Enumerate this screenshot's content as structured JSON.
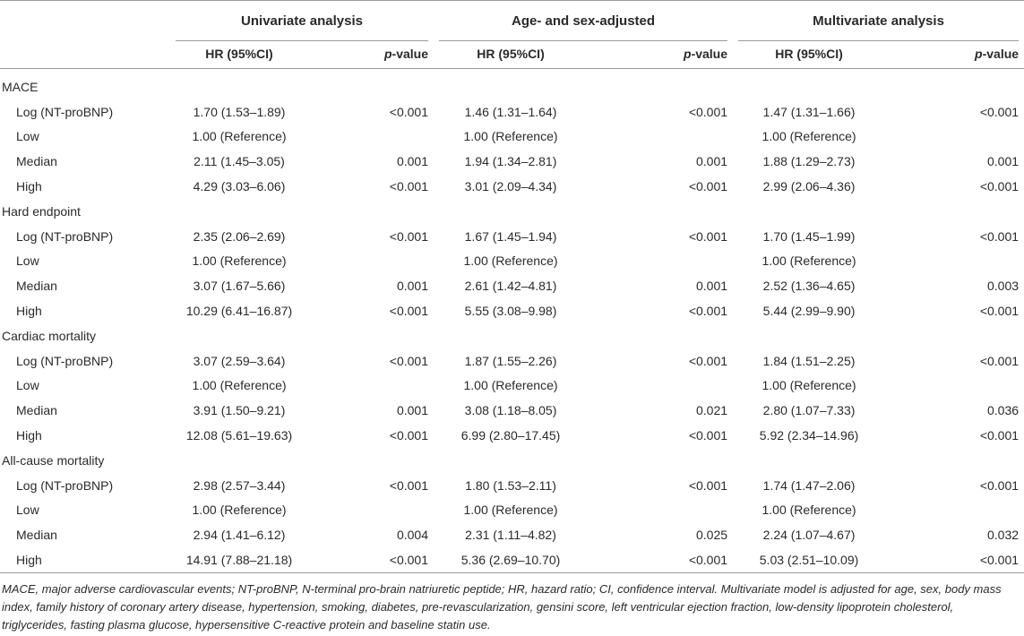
{
  "header": {
    "groups": [
      "Univariate analysis",
      "Age- and sex-adjusted",
      "Multivariate analysis"
    ],
    "hr_label": "HR (95%CI)",
    "p_italic": "p",
    "p_rest": "-value"
  },
  "sections": [
    {
      "title": "MACE",
      "rows": [
        {
          "label": "Log (NT-proBNP)",
          "u_hr": "1.70 (1.53–1.89)",
          "u_p": "<0.001",
          "a_hr": "1.46 (1.31–1.64)",
          "a_p": "<0.001",
          "m_hr": "1.47 (1.31–1.66)",
          "m_p": "<0.001"
        },
        {
          "label": "Low",
          "u_hr": "1.00 (Reference)",
          "u_p": "",
          "a_hr": "1.00 (Reference)",
          "a_p": "",
          "m_hr": "1.00 (Reference)",
          "m_p": ""
        },
        {
          "label": "Median",
          "u_hr": "2.11 (1.45–3.05)",
          "u_p": "0.001",
          "a_hr": "1.94 (1.34–2.81)",
          "a_p": "0.001",
          "m_hr": "1.88 (1.29–2.73)",
          "m_p": "0.001"
        },
        {
          "label": "High",
          "u_hr": "4.29 (3.03–6.06)",
          "u_p": "<0.001",
          "a_hr": "3.01 (2.09–4.34)",
          "a_p": "<0.001",
          "m_hr": "2.99 (2.06–4.36)",
          "m_p": "<0.001"
        }
      ]
    },
    {
      "title": "Hard endpoint",
      "rows": [
        {
          "label": "Log (NT-proBNP)",
          "u_hr": "2.35 (2.06–2.69)",
          "u_p": "<0.001",
          "a_hr": "1.67 (1.45–1.94)",
          "a_p": "<0.001",
          "m_hr": "1.70 (1.45–1.99)",
          "m_p": "<0.001"
        },
        {
          "label": "Low",
          "u_hr": "1.00 (Reference)",
          "u_p": "",
          "a_hr": "1.00 (Reference)",
          "a_p": "",
          "m_hr": "1.00 (Reference)",
          "m_p": ""
        },
        {
          "label": "Median",
          "u_hr": "3.07 (1.67–5.66)",
          "u_p": "0.001",
          "a_hr": "2.61 (1.42–4.81)",
          "a_p": "0.001",
          "m_hr": "2.52 (1.36–4.65)",
          "m_p": "0.003"
        },
        {
          "label": "High",
          "u_hr": "10.29 (6.41–16.87)",
          "u_p": "<0.001",
          "a_hr": "5.55 (3.08–9.98)",
          "a_p": "<0.001",
          "m_hr": "5.44 (2.99–9.90)",
          "m_p": "<0.001"
        }
      ]
    },
    {
      "title": "Cardiac mortality",
      "rows": [
        {
          "label": "Log (NT-proBNP)",
          "u_hr": "3.07 (2.59–3.64)",
          "u_p": "<0.001",
          "a_hr": "1.87 (1.55–2.26)",
          "a_p": "<0.001",
          "m_hr": "1.84 (1.51–2.25)",
          "m_p": "<0.001"
        },
        {
          "label": "Low",
          "u_hr": "1.00 (Reference)",
          "u_p": "",
          "a_hr": "1.00 (Reference)",
          "a_p": "",
          "m_hr": "1.00 (Reference)",
          "m_p": ""
        },
        {
          "label": "Median",
          "u_hr": "3.91 (1.50–9.21)",
          "u_p": "0.001",
          "a_hr": "3.08 (1.18–8.05)",
          "a_p": "0.021",
          "m_hr": "2.80 (1.07–7.33)",
          "m_p": "0.036"
        },
        {
          "label": "High",
          "u_hr": "12.08 (5.61–19.63)",
          "u_p": "<0.001",
          "a_hr": "6.99 (2.80–17.45)",
          "a_p": "<0.001",
          "m_hr": "5.92 (2.34–14.96)",
          "m_p": "<0.001"
        }
      ]
    },
    {
      "title": "All-cause mortality",
      "rows": [
        {
          "label": "Log (NT-proBNP)",
          "u_hr": "2.98 (2.57–3.44)",
          "u_p": "<0.001",
          "a_hr": "1.80 (1.53–2.11)",
          "a_p": "<0.001",
          "m_hr": "1.74 (1.47–2.06)",
          "m_p": "<0.001"
        },
        {
          "label": "Low",
          "u_hr": "1.00 (Reference)",
          "u_p": "",
          "a_hr": "1.00 (Reference)",
          "a_p": "",
          "m_hr": "1.00 (Reference)",
          "m_p": ""
        },
        {
          "label": "Median",
          "u_hr": "2.94 (1.41–6.12)",
          "u_p": "0.004",
          "a_hr": "2.31 (1.11–4.82)",
          "a_p": "0.025",
          "m_hr": "2.24 (1.07–4.67)",
          "m_p": "0.032"
        },
        {
          "label": "High",
          "u_hr": "14.91 (7.88–21.18)",
          "u_p": "<0.001",
          "a_hr": "5.36 (2.69–10.70)",
          "a_p": "<0.001",
          "m_hr": "5.03 (2.51–10.09)",
          "m_p": "<0.001"
        }
      ]
    }
  ],
  "footnote": "MACE, major adverse cardiovascular events; NT-proBNP, N-terminal pro-brain natriuretic peptide; HR, hazard ratio; CI, confidence interval. Multivariate model is adjusted for age, sex, body mass index, family history of coronary artery disease, hypertension, smoking, diabetes, pre-revascularization, gensini score, left ventricular ejection fraction, low-density lipoprotein cholesterol, triglycerides, fasting plasma glucose, hypersensitive C-reactive protein and baseline statin use."
}
